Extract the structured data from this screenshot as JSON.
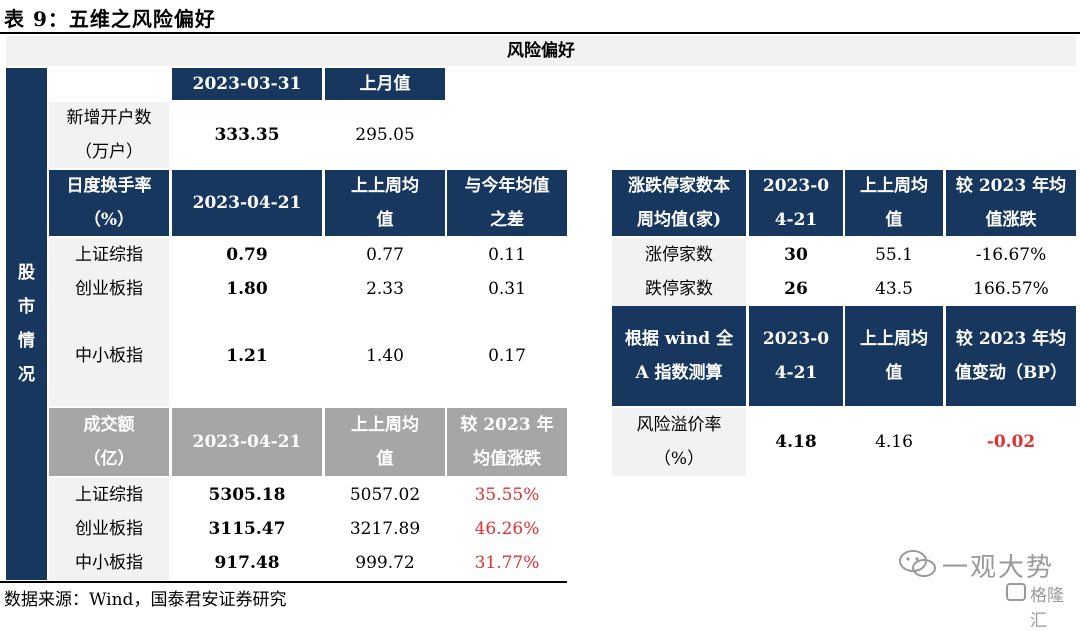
{
  "title": "表 9：五维之风险偏好",
  "source": "数据来源：Wind，国泰君安证券研究",
  "banner": "风险偏好",
  "side_label": "股市情况",
  "accounts": {
    "col_date": "2023-03-31",
    "col_prev": "上月值",
    "row_label": "新增开户数（万户）",
    "value": "333.35",
    "prev": "295.05"
  },
  "turnover": {
    "label": "日度换手率（%）",
    "col_date": "2023-04-21",
    "col_prev": "上上周均值",
    "col_diff": "与今年均值之差",
    "rows": [
      {
        "name": "上证综指",
        "value": "0.79",
        "prev": "0.77",
        "diff": "0.11"
      },
      {
        "name": "创业板指",
        "value": "1.80",
        "prev": "2.33",
        "diff": "0.31"
      },
      {
        "name": "中小板指",
        "value": "1.21",
        "prev": "1.40",
        "diff": "0.17"
      }
    ]
  },
  "volume": {
    "label": "成交额（亿）",
    "col_date": "2023-04-21",
    "col_prev": "上上周均值",
    "col_diff": "较 2023 年均值涨跌",
    "rows": [
      {
        "name": "上证综指",
        "value": "5305.18",
        "prev": "5057.02",
        "diff": "35.55%"
      },
      {
        "name": "创业板指",
        "value": "3115.47",
        "prev": "3217.89",
        "diff": "46.26%"
      },
      {
        "name": "中小板指",
        "value": "917.48",
        "prev": "999.72",
        "diff": "31.77%"
      }
    ]
  },
  "limits": {
    "label": "涨跌停家数本周均值(家)",
    "col_date": "2023-04-21",
    "col_prev": "上上周均值",
    "col_diff": "较 2023 年均值涨跌",
    "rows": [
      {
        "name": "涨停家数",
        "value": "30",
        "prev": "55.1",
        "diff": "-16.67%"
      },
      {
        "name": "跌停家数",
        "value": "26",
        "prev": "43.5",
        "diff": "166.57%"
      }
    ]
  },
  "premium": {
    "label": "根据 wind 全 A 指数测算",
    "col_date": "2023-04-21",
    "col_prev": "上上周均值",
    "col_diff": "较 2023 年均值变动（BP）",
    "row_label": "风险溢价率（%）",
    "value": "4.18",
    "prev": "4.16",
    "diff": "-0.02"
  },
  "watermark": {
    "text": "一观大势",
    "brand": "格隆汇"
  }
}
